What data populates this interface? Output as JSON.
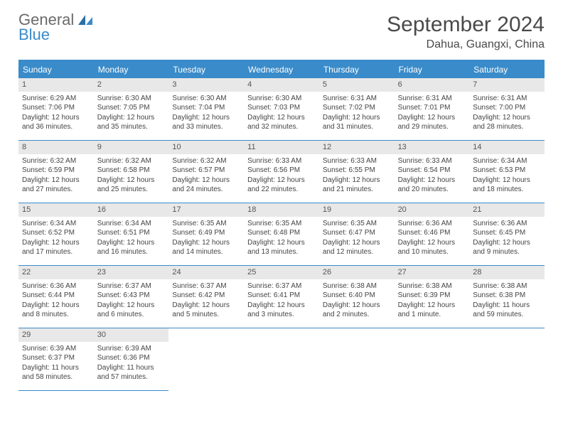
{
  "logo": {
    "line1": "General",
    "line2": "Blue"
  },
  "title": "September 2024",
  "location": "Dahua, Guangxi, China",
  "colors": {
    "accent": "#3a8bc9",
    "headerText": "#ffffff",
    "daynumBg": "#e8e8e8",
    "bodyText": "#444444",
    "logoGray": "#6a6a6a",
    "page": "#ffffff"
  },
  "dayHeaders": [
    "Sunday",
    "Monday",
    "Tuesday",
    "Wednesday",
    "Thursday",
    "Friday",
    "Saturday"
  ],
  "days": [
    {
      "n": 1,
      "sunrise": "6:29 AM",
      "sunset": "7:06 PM",
      "daylight": "12 hours and 36 minutes."
    },
    {
      "n": 2,
      "sunrise": "6:30 AM",
      "sunset": "7:05 PM",
      "daylight": "12 hours and 35 minutes."
    },
    {
      "n": 3,
      "sunrise": "6:30 AM",
      "sunset": "7:04 PM",
      "daylight": "12 hours and 33 minutes."
    },
    {
      "n": 4,
      "sunrise": "6:30 AM",
      "sunset": "7:03 PM",
      "daylight": "12 hours and 32 minutes."
    },
    {
      "n": 5,
      "sunrise": "6:31 AM",
      "sunset": "7:02 PM",
      "daylight": "12 hours and 31 minutes."
    },
    {
      "n": 6,
      "sunrise": "6:31 AM",
      "sunset": "7:01 PM",
      "daylight": "12 hours and 29 minutes."
    },
    {
      "n": 7,
      "sunrise": "6:31 AM",
      "sunset": "7:00 PM",
      "daylight": "12 hours and 28 minutes."
    },
    {
      "n": 8,
      "sunrise": "6:32 AM",
      "sunset": "6:59 PM",
      "daylight": "12 hours and 27 minutes."
    },
    {
      "n": 9,
      "sunrise": "6:32 AM",
      "sunset": "6:58 PM",
      "daylight": "12 hours and 25 minutes."
    },
    {
      "n": 10,
      "sunrise": "6:32 AM",
      "sunset": "6:57 PM",
      "daylight": "12 hours and 24 minutes."
    },
    {
      "n": 11,
      "sunrise": "6:33 AM",
      "sunset": "6:56 PM",
      "daylight": "12 hours and 22 minutes."
    },
    {
      "n": 12,
      "sunrise": "6:33 AM",
      "sunset": "6:55 PM",
      "daylight": "12 hours and 21 minutes."
    },
    {
      "n": 13,
      "sunrise": "6:33 AM",
      "sunset": "6:54 PM",
      "daylight": "12 hours and 20 minutes."
    },
    {
      "n": 14,
      "sunrise": "6:34 AM",
      "sunset": "6:53 PM",
      "daylight": "12 hours and 18 minutes."
    },
    {
      "n": 15,
      "sunrise": "6:34 AM",
      "sunset": "6:52 PM",
      "daylight": "12 hours and 17 minutes."
    },
    {
      "n": 16,
      "sunrise": "6:34 AM",
      "sunset": "6:51 PM",
      "daylight": "12 hours and 16 minutes."
    },
    {
      "n": 17,
      "sunrise": "6:35 AM",
      "sunset": "6:49 PM",
      "daylight": "12 hours and 14 minutes."
    },
    {
      "n": 18,
      "sunrise": "6:35 AM",
      "sunset": "6:48 PM",
      "daylight": "12 hours and 13 minutes."
    },
    {
      "n": 19,
      "sunrise": "6:35 AM",
      "sunset": "6:47 PM",
      "daylight": "12 hours and 12 minutes."
    },
    {
      "n": 20,
      "sunrise": "6:36 AM",
      "sunset": "6:46 PM",
      "daylight": "12 hours and 10 minutes."
    },
    {
      "n": 21,
      "sunrise": "6:36 AM",
      "sunset": "6:45 PM",
      "daylight": "12 hours and 9 minutes."
    },
    {
      "n": 22,
      "sunrise": "6:36 AM",
      "sunset": "6:44 PM",
      "daylight": "12 hours and 8 minutes."
    },
    {
      "n": 23,
      "sunrise": "6:37 AM",
      "sunset": "6:43 PM",
      "daylight": "12 hours and 6 minutes."
    },
    {
      "n": 24,
      "sunrise": "6:37 AM",
      "sunset": "6:42 PM",
      "daylight": "12 hours and 5 minutes."
    },
    {
      "n": 25,
      "sunrise": "6:37 AM",
      "sunset": "6:41 PM",
      "daylight": "12 hours and 3 minutes."
    },
    {
      "n": 26,
      "sunrise": "6:38 AM",
      "sunset": "6:40 PM",
      "daylight": "12 hours and 2 minutes."
    },
    {
      "n": 27,
      "sunrise": "6:38 AM",
      "sunset": "6:39 PM",
      "daylight": "12 hours and 1 minute."
    },
    {
      "n": 28,
      "sunrise": "6:38 AM",
      "sunset": "6:38 PM",
      "daylight": "11 hours and 59 minutes."
    },
    {
      "n": 29,
      "sunrise": "6:39 AM",
      "sunset": "6:37 PM",
      "daylight": "11 hours and 58 minutes."
    },
    {
      "n": 30,
      "sunrise": "6:39 AM",
      "sunset": "6:36 PM",
      "daylight": "11 hours and 57 minutes."
    }
  ],
  "labels": {
    "sunrise": "Sunrise: ",
    "sunset": "Sunset: ",
    "daylight": "Daylight: "
  },
  "startDayOffset": 0,
  "trailingEmpty": 5
}
